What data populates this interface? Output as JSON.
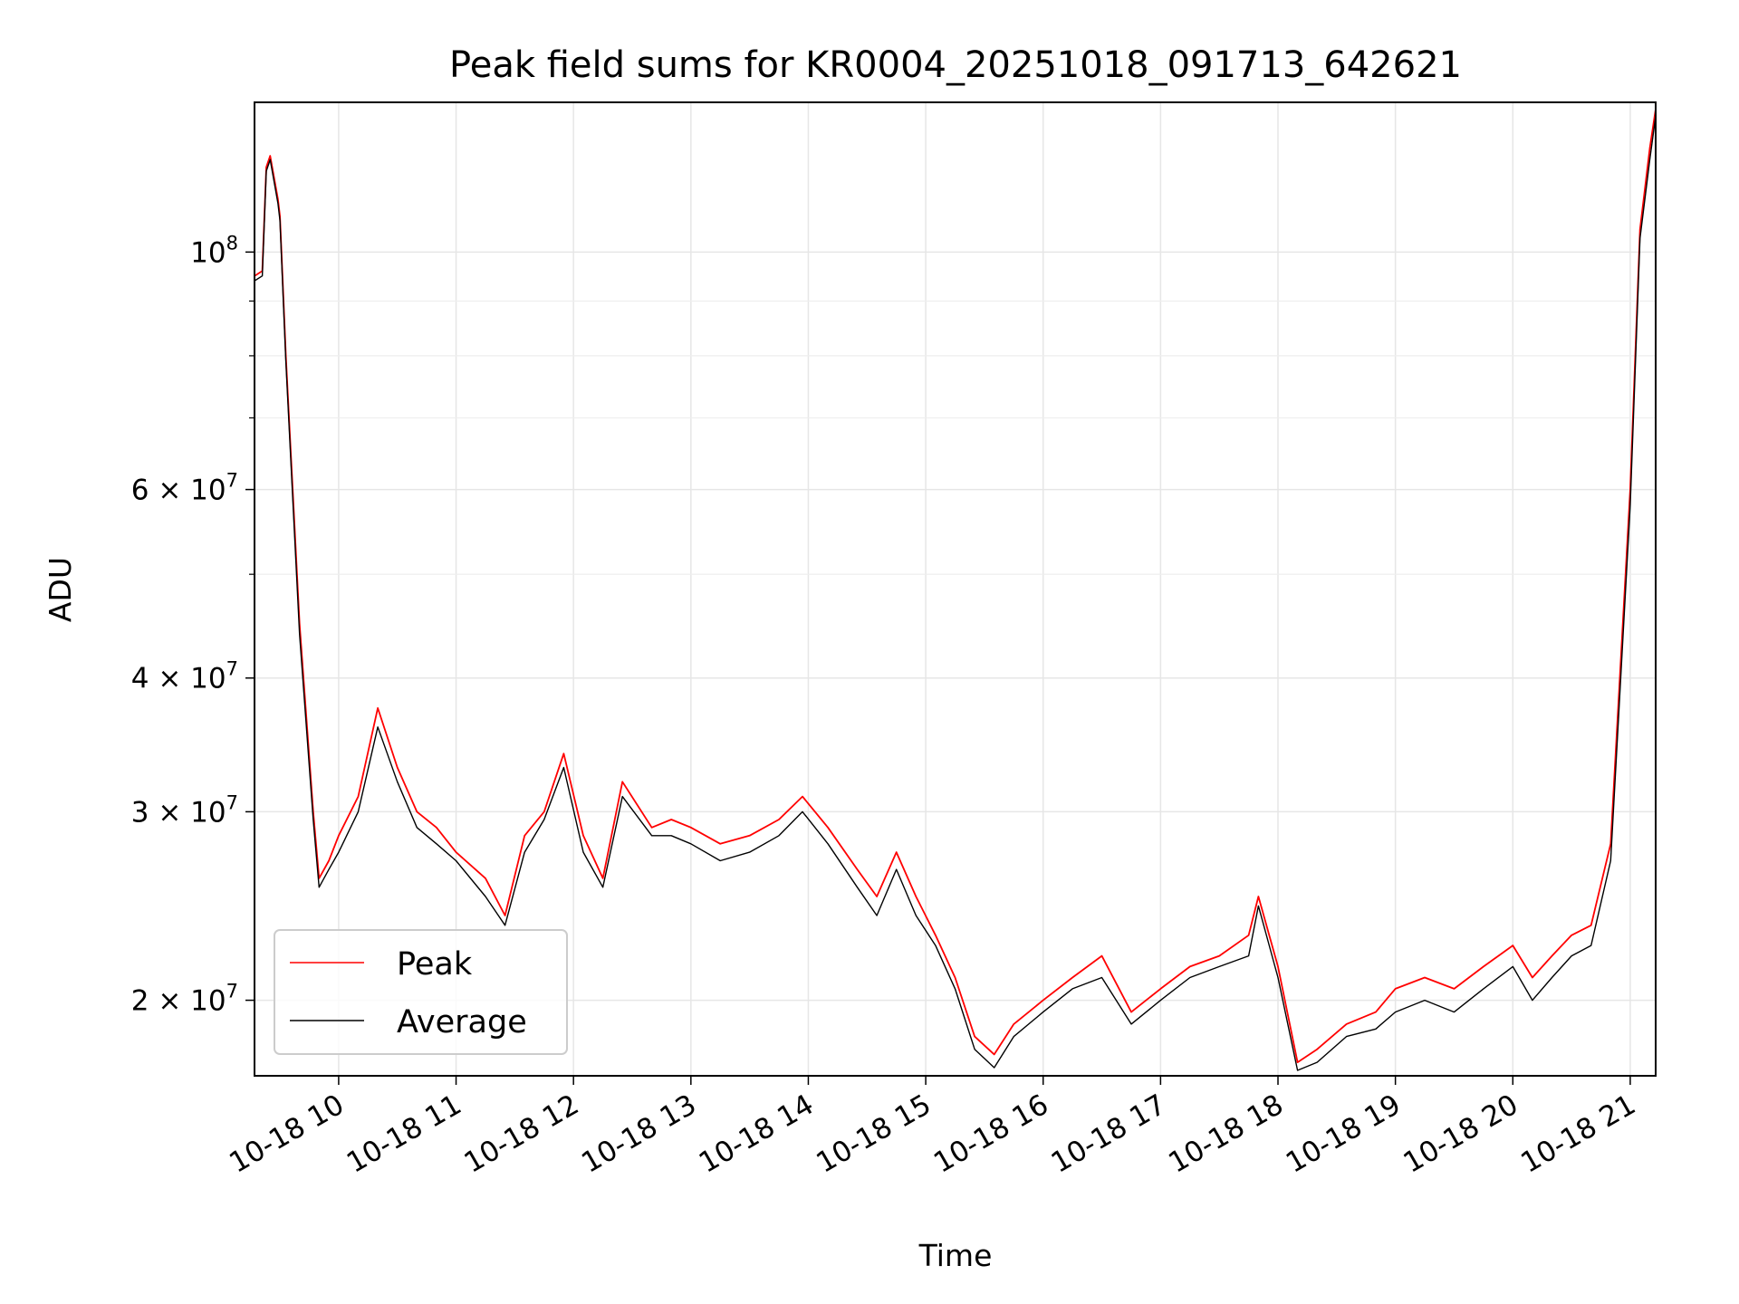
{
  "chart_data": {
    "type": "line",
    "title": "Peak field sums for KR0004_20251018_091713_642621",
    "xlabel": "Time",
    "ylabel": "ADU",
    "y_scale": "log",
    "ylim": [
      17000000,
      138000000
    ],
    "xlim": [
      "2025-10-18T09:17",
      "2025-10-18T21:13"
    ],
    "grid": true,
    "legend_position": "lower-left",
    "x_tick_labels": [
      "10-18 10",
      "10-18 11",
      "10-18 12",
      "10-18 13",
      "10-18 14",
      "10-18 15",
      "10-18 16",
      "10-18 17",
      "10-18 18",
      "10-18 19",
      "10-18 20",
      "10-18 21"
    ],
    "x_tick_values": [
      "2025-10-18T10:00",
      "2025-10-18T11:00",
      "2025-10-18T12:00",
      "2025-10-18T13:00",
      "2025-10-18T14:00",
      "2025-10-18T15:00",
      "2025-10-18T16:00",
      "2025-10-18T17:00",
      "2025-10-18T18:00",
      "2025-10-18T19:00",
      "2025-10-18T20:00",
      "2025-10-18T21:00"
    ],
    "y_ticks": [
      {
        "value": 100000000,
        "base": "10",
        "exp": "8"
      },
      {
        "value": 60000000,
        "base": "6 × 10",
        "exp": "7"
      },
      {
        "value": 40000000,
        "base": "4 × 10",
        "exp": "7"
      },
      {
        "value": 30000000,
        "base": "3 × 10",
        "exp": "7"
      },
      {
        "value": 20000000,
        "base": "2 × 10",
        "exp": "7"
      }
    ],
    "y_minor_ticks": [
      50000000,
      70000000,
      80000000,
      90000000
    ],
    "series": [
      {
        "name": "Peak",
        "color": "#ff0000",
        "x": [
          "2025-10-18T09:17",
          "2025-10-18T09:21",
          "2025-10-18T09:23",
          "2025-10-18T09:25",
          "2025-10-18T09:29",
          "2025-10-18T09:30",
          "2025-10-18T09:33",
          "2025-10-18T09:40",
          "2025-10-18T09:47",
          "2025-10-18T09:50",
          "2025-10-18T09:55",
          "2025-10-18T10:00",
          "2025-10-18T10:10",
          "2025-10-18T10:20",
          "2025-10-18T10:30",
          "2025-10-18T10:40",
          "2025-10-18T10:50",
          "2025-10-18T11:00",
          "2025-10-18T11:15",
          "2025-10-18T11:25",
          "2025-10-18T11:35",
          "2025-10-18T11:45",
          "2025-10-18T11:55",
          "2025-10-18T12:05",
          "2025-10-18T12:15",
          "2025-10-18T12:25",
          "2025-10-18T12:40",
          "2025-10-18T12:50",
          "2025-10-18T13:00",
          "2025-10-18T13:15",
          "2025-10-18T13:30",
          "2025-10-18T13:45",
          "2025-10-18T13:57",
          "2025-10-18T14:10",
          "2025-10-18T14:25",
          "2025-10-18T14:35",
          "2025-10-18T14:45",
          "2025-10-18T14:55",
          "2025-10-18T15:05",
          "2025-10-18T15:15",
          "2025-10-18T15:25",
          "2025-10-18T15:35",
          "2025-10-18T15:45",
          "2025-10-18T16:00",
          "2025-10-18T16:15",
          "2025-10-18T16:30",
          "2025-10-18T16:45",
          "2025-10-18T17:00",
          "2025-10-18T17:15",
          "2025-10-18T17:30",
          "2025-10-18T17:45",
          "2025-10-18T17:50",
          "2025-10-18T18:00",
          "2025-10-18T18:10",
          "2025-10-18T18:20",
          "2025-10-18T18:35",
          "2025-10-18T18:50",
          "2025-10-18T19:00",
          "2025-10-18T19:15",
          "2025-10-18T19:30",
          "2025-10-18T19:45",
          "2025-10-18T20:00",
          "2025-10-18T20:10",
          "2025-10-18T20:20",
          "2025-10-18T20:30",
          "2025-10-18T20:40",
          "2025-10-18T20:50",
          "2025-10-18T21:00",
          "2025-10-18T21:05",
          "2025-10-18T21:10",
          "2025-10-18T21:13"
        ],
        "y": [
          95000000,
          96000000,
          120000000,
          123000000,
          112000000,
          108000000,
          80000000,
          45000000,
          30000000,
          26000000,
          27000000,
          28500000,
          31000000,
          37500000,
          33000000,
          30000000,
          29000000,
          27500000,
          26000000,
          24000000,
          28500000,
          30000000,
          34000000,
          28500000,
          26000000,
          32000000,
          29000000,
          29500000,
          29000000,
          28000000,
          28500000,
          29500000,
          31000000,
          29000000,
          26500000,
          25000000,
          27500000,
          25000000,
          23000000,
          21000000,
          18500000,
          17800000,
          19000000,
          20000000,
          21000000,
          22000000,
          19500000,
          20500000,
          21500000,
          22000000,
          23000000,
          25000000,
          21500000,
          17500000,
          18000000,
          19000000,
          19500000,
          20500000,
          21000000,
          20500000,
          21500000,
          22500000,
          21000000,
          22000000,
          23000000,
          23500000,
          28000000,
          60000000,
          105000000,
          125000000,
          136000000
        ]
      },
      {
        "name": "Average",
        "color": "#000000",
        "x": [
          "2025-10-18T09:17",
          "2025-10-18T09:21",
          "2025-10-18T09:23",
          "2025-10-18T09:25",
          "2025-10-18T09:29",
          "2025-10-18T09:30",
          "2025-10-18T09:33",
          "2025-10-18T09:40",
          "2025-10-18T09:47",
          "2025-10-18T09:50",
          "2025-10-18T09:55",
          "2025-10-18T10:00",
          "2025-10-18T10:10",
          "2025-10-18T10:20",
          "2025-10-18T10:30",
          "2025-10-18T10:40",
          "2025-10-18T10:50",
          "2025-10-18T11:00",
          "2025-10-18T11:15",
          "2025-10-18T11:25",
          "2025-10-18T11:35",
          "2025-10-18T11:45",
          "2025-10-18T11:55",
          "2025-10-18T12:05",
          "2025-10-18T12:15",
          "2025-10-18T12:25",
          "2025-10-18T12:40",
          "2025-10-18T12:50",
          "2025-10-18T13:00",
          "2025-10-18T13:15",
          "2025-10-18T13:30",
          "2025-10-18T13:45",
          "2025-10-18T13:57",
          "2025-10-18T14:10",
          "2025-10-18T14:25",
          "2025-10-18T14:35",
          "2025-10-18T14:45",
          "2025-10-18T14:55",
          "2025-10-18T15:05",
          "2025-10-18T15:15",
          "2025-10-18T15:25",
          "2025-10-18T15:35",
          "2025-10-18T15:45",
          "2025-10-18T16:00",
          "2025-10-18T16:15",
          "2025-10-18T16:30",
          "2025-10-18T16:45",
          "2025-10-18T17:00",
          "2025-10-18T17:15",
          "2025-10-18T17:30",
          "2025-10-18T17:45",
          "2025-10-18T17:50",
          "2025-10-18T18:00",
          "2025-10-18T18:10",
          "2025-10-18T18:20",
          "2025-10-18T18:35",
          "2025-10-18T18:50",
          "2025-10-18T19:00",
          "2025-10-18T19:15",
          "2025-10-18T19:30",
          "2025-10-18T19:45",
          "2025-10-18T20:00",
          "2025-10-18T20:10",
          "2025-10-18T20:20",
          "2025-10-18T20:30",
          "2025-10-18T20:40",
          "2025-10-18T20:50",
          "2025-10-18T21:00",
          "2025-10-18T21:05",
          "2025-10-18T21:10",
          "2025-10-18T21:13"
        ],
        "y": [
          94000000,
          95000000,
          119000000,
          122000000,
          111000000,
          107000000,
          79000000,
          44000000,
          29500000,
          25500000,
          26500000,
          27500000,
          30000000,
          36000000,
          32000000,
          29000000,
          28000000,
          27000000,
          25000000,
          23500000,
          27500000,
          29500000,
          33000000,
          27500000,
          25500000,
          31000000,
          28500000,
          28500000,
          28000000,
          27000000,
          27500000,
          28500000,
          30000000,
          28000000,
          25500000,
          24000000,
          26500000,
          24000000,
          22500000,
          20500000,
          18000000,
          17300000,
          18500000,
          19500000,
          20500000,
          21000000,
          19000000,
          20000000,
          21000000,
          21500000,
          22000000,
          24500000,
          21000000,
          17200000,
          17500000,
          18500000,
          18800000,
          19500000,
          20000000,
          19500000,
          20500000,
          21500000,
          20000000,
          21000000,
          22000000,
          22500000,
          27000000,
          58000000,
          103000000,
          122000000,
          134000000
        ]
      }
    ]
  }
}
